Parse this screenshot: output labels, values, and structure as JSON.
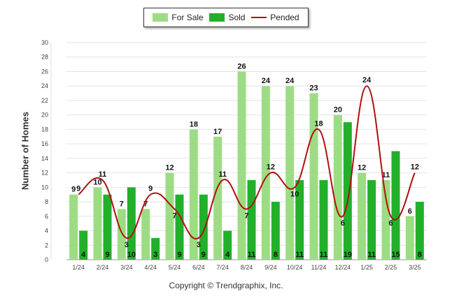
{
  "chart_data": {
    "type": "bar",
    "categories": [
      "1/24",
      "2/24",
      "3/24",
      "4/24",
      "5/24",
      "6/24",
      "7/24",
      "8/24",
      "9/24",
      "10/24",
      "11/24",
      "12/24",
      "1/25",
      "2/25",
      "3/25"
    ],
    "series": [
      {
        "name": "For Sale",
        "type": "bar",
        "color": "#9ddc84",
        "values": [
          9,
          10,
          7,
          7,
          12,
          18,
          17,
          26,
          24,
          24,
          23,
          20,
          12,
          11,
          6
        ]
      },
      {
        "name": "Sold",
        "type": "bar",
        "color": "#22b02b",
        "values": [
          4,
          9,
          10,
          3,
          9,
          9,
          4,
          11,
          8,
          11,
          11,
          19,
          11,
          15,
          8
        ]
      },
      {
        "name": "Pended",
        "type": "line",
        "color": "#b01010",
        "values": [
          9,
          11,
          3,
          9,
          7,
          3,
          11,
          7,
          12,
          10,
          18,
          6,
          24,
          6,
          12
        ]
      }
    ],
    "ylabel": "Number of Homes",
    "ylim": [
      0,
      30
    ],
    "yticks": [
      0,
      2,
      4,
      6,
      8,
      10,
      12,
      14,
      16,
      18,
      20,
      22,
      24,
      26,
      28,
      30
    ],
    "grid": true,
    "legend_position": "top-center"
  },
  "footer": {
    "copyright": "Copyright © Trendgraphix, Inc."
  }
}
